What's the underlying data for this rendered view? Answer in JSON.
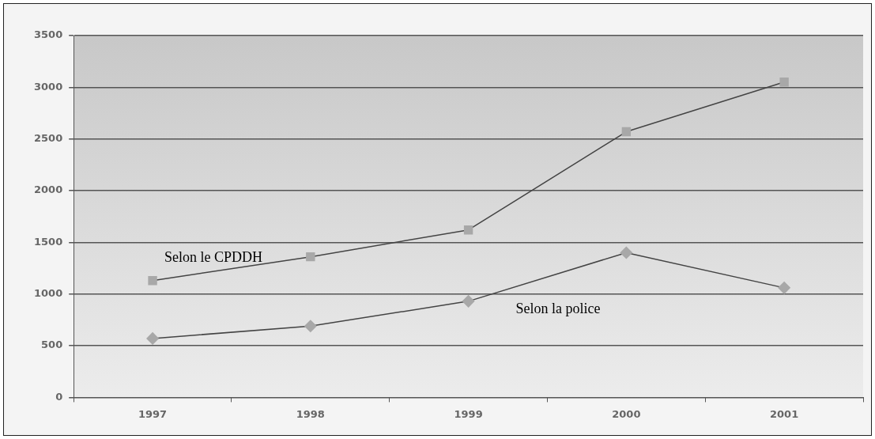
{
  "chart_data": {
    "type": "line",
    "categories": [
      "1997",
      "1998",
      "1999",
      "2000",
      "2001"
    ],
    "series": [
      {
        "name": "Selon le CPDDH",
        "color": "#444444",
        "marker": "square",
        "values": [
          1130,
          1360,
          1620,
          2570,
          3050
        ]
      },
      {
        "name": "Selon la police",
        "color": "#444444",
        "marker": "diamond",
        "values": [
          570,
          690,
          930,
          1400,
          1060
        ]
      }
    ],
    "ylim": [
      0,
      3500
    ],
    "yticks": [
      0,
      500,
      1000,
      1500,
      2000,
      2500,
      3000,
      3500
    ],
    "grid": "y",
    "legend": false,
    "line_style": "solid"
  }
}
